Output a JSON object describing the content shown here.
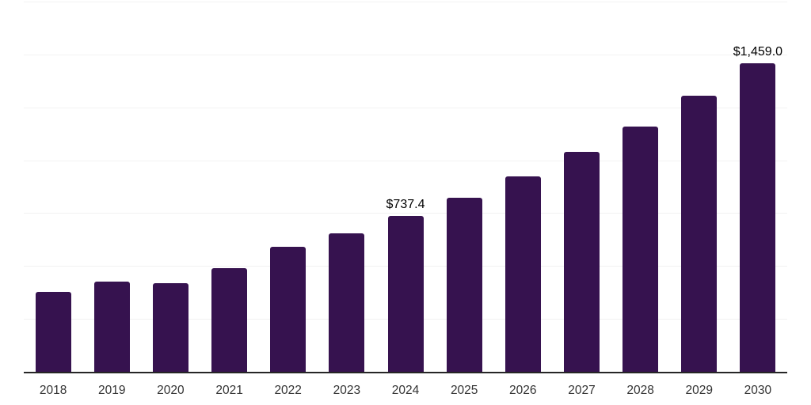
{
  "chart_data": {
    "type": "bar",
    "title": "",
    "xlabel": "",
    "ylabel": "",
    "categories": [
      "2018",
      "2019",
      "2020",
      "2021",
      "2022",
      "2023",
      "2024",
      "2025",
      "2026",
      "2027",
      "2028",
      "2029",
      "2030"
    ],
    "values": [
      378.0,
      424.9,
      418.2,
      489.2,
      590.1,
      655.9,
      737.4,
      824.4,
      925.2,
      1039.8,
      1160.9,
      1305.1,
      1459.0
    ],
    "data_labels": {
      "2024": "$737.4",
      "2030": "$1,459.0"
    },
    "ylim": [
      0,
      1750
    ],
    "grid_step": 250,
    "grid": "horizontal-only",
    "legend": "none",
    "colors": {
      "bar_fill": "#36124f",
      "axis_line": "#262626",
      "gridline": "#f2f2f2",
      "tick_label": "#333333",
      "data_label": "#000000",
      "background": "#ffffff"
    }
  },
  "layout_values": {
    "note_visible_text_only": "Only bar category labels and two data labels are rendered as text in the image."
  }
}
